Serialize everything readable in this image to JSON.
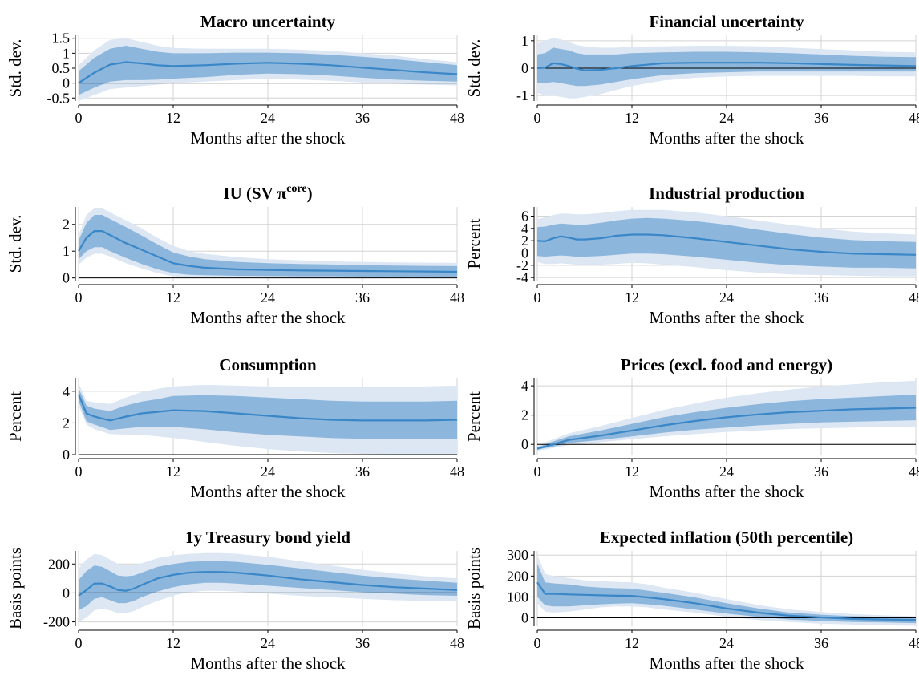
{
  "figure": {
    "xlabel": "Months after the shock",
    "x_ticks": [
      0,
      12,
      24,
      36,
      48
    ],
    "xlim": [
      0,
      48
    ]
  },
  "chart_data": [
    {
      "type": "line",
      "title": "Macro uncertainty",
      "ylabel": "Std. dev.",
      "ylim": [
        -0.6,
        1.6
      ],
      "y_ticks": [
        1.5,
        1,
        0.5,
        0,
        -0.5
      ],
      "y_tick_labels": [
        "1.5",
        "1",
        "0.5",
        "0",
        "-0.5"
      ],
      "x": [
        0,
        2,
        4,
        6,
        8,
        10,
        12,
        16,
        20,
        24,
        28,
        32,
        36,
        40,
        44,
        48
      ],
      "median": [
        0,
        0.35,
        0.62,
        0.7,
        0.66,
        0.6,
        0.57,
        0.6,
        0.65,
        0.68,
        0.65,
        0.6,
        0.52,
        0.44,
        0.36,
        0.3
      ],
      "inner_lo": [
        -0.4,
        -0.15,
        0.05,
        0.1,
        0.1,
        0.12,
        0.15,
        0.2,
        0.28,
        0.32,
        0.3,
        0.25,
        0.18,
        0.12,
        0.08,
        0.05
      ],
      "inner_hi": [
        0.4,
        0.85,
        1.15,
        1.25,
        1.15,
        1.05,
        1.0,
        1.0,
        1.02,
        1.02,
        1.0,
        0.95,
        0.88,
        0.8,
        0.7,
        0.6
      ],
      "outer_lo": [
        -0.6,
        -0.4,
        -0.2,
        -0.15,
        -0.1,
        -0.05,
        0.0,
        0.05,
        0.1,
        0.15,
        0.12,
        0.08,
        0.02,
        -0.02,
        -0.05,
        -0.08
      ],
      "outer_hi": [
        0.6,
        1.1,
        1.45,
        1.5,
        1.38,
        1.25,
        1.18,
        1.15,
        1.15,
        1.15,
        1.12,
        1.08,
        1.0,
        0.92,
        0.8,
        0.7
      ]
    },
    {
      "type": "line",
      "title": "Financial uncertainty",
      "ylabel": "Std. dev.",
      "ylim": [
        -1.2,
        1.2
      ],
      "y_ticks": [
        1,
        0,
        -1
      ],
      "y_tick_labels": [
        "1",
        "0",
        "-1"
      ],
      "x": [
        0,
        1,
        2,
        3,
        4,
        5,
        6,
        8,
        10,
        12,
        16,
        20,
        24,
        28,
        32,
        36,
        40,
        44,
        48
      ],
      "median": [
        0,
        0.02,
        0.18,
        0.15,
        0.08,
        -0.02,
        -0.08,
        -0.06,
        0.0,
        0.08,
        0.18,
        0.2,
        0.2,
        0.2,
        0.18,
        0.15,
        0.12,
        0.1,
        0.08
      ],
      "inner_lo": [
        -0.55,
        -0.55,
        -0.5,
        -0.55,
        -0.6,
        -0.65,
        -0.65,
        -0.6,
        -0.5,
        -0.4,
        -0.25,
        -0.18,
        -0.15,
        -0.12,
        -0.12,
        -0.12,
        -0.12,
        -0.12,
        -0.12
      ],
      "inner_hi": [
        0.5,
        0.55,
        0.75,
        0.7,
        0.65,
        0.55,
        0.5,
        0.5,
        0.5,
        0.55,
        0.58,
        0.6,
        0.6,
        0.58,
        0.55,
        0.5,
        0.45,
        0.42,
        0.4
      ],
      "outer_lo": [
        -0.9,
        -1.0,
        -1.0,
        -1.05,
        -1.1,
        -1.1,
        -1.05,
        -0.95,
        -0.8,
        -0.65,
        -0.45,
        -0.35,
        -0.3,
        -0.28,
        -0.28,
        -0.28,
        -0.28,
        -0.3,
        -0.3
      ],
      "outer_hi": [
        0.9,
        1.0,
        1.1,
        1.05,
        0.95,
        0.85,
        0.8,
        0.75,
        0.75,
        0.78,
        0.8,
        0.82,
        0.82,
        0.8,
        0.75,
        0.7,
        0.65,
        0.6,
        0.58
      ]
    },
    {
      "type": "line",
      "title": "IU (SV π",
      "title_sup": "core",
      "title_close": ")",
      "ylabel": "Std. dev.",
      "ylim": [
        -0.1,
        2.65
      ],
      "y_ticks": [
        2,
        1,
        0
      ],
      "y_tick_labels": [
        "2",
        "1",
        "0"
      ],
      "x": [
        0,
        1,
        2,
        3,
        4,
        6,
        8,
        10,
        12,
        14,
        16,
        20,
        24,
        28,
        32,
        36,
        40,
        44,
        48
      ],
      "median": [
        1.0,
        1.5,
        1.75,
        1.75,
        1.6,
        1.3,
        1.05,
        0.8,
        0.55,
        0.45,
        0.38,
        0.32,
        0.3,
        0.28,
        0.27,
        0.26,
        0.25,
        0.24,
        0.23
      ],
      "inner_lo": [
        0.7,
        1.0,
        1.15,
        1.15,
        1.0,
        0.75,
        0.52,
        0.32,
        0.18,
        0.12,
        0.1,
        0.08,
        0.07,
        0.06,
        0.06,
        0.05,
        0.05,
        0.05,
        0.05
      ],
      "inner_hi": [
        1.4,
        2.05,
        2.35,
        2.35,
        2.2,
        1.9,
        1.58,
        1.25,
        0.95,
        0.8,
        0.7,
        0.6,
        0.55,
        0.52,
        0.5,
        0.48,
        0.46,
        0.45,
        0.44
      ],
      "outer_lo": [
        0.5,
        0.75,
        0.9,
        0.9,
        0.8,
        0.55,
        0.35,
        0.18,
        0.06,
        0.02,
        0.0,
        -0.02,
        -0.02,
        -0.02,
        -0.02,
        -0.02,
        -0.02,
        -0.02,
        -0.02
      ],
      "outer_hi": [
        1.6,
        2.35,
        2.6,
        2.6,
        2.45,
        2.15,
        1.85,
        1.5,
        1.2,
        1.0,
        0.9,
        0.78,
        0.7,
        0.66,
        0.62,
        0.6,
        0.58,
        0.57,
        0.56
      ]
    },
    {
      "type": "line",
      "title": "Industrial production",
      "ylabel": "Percent",
      "ylim": [
        -4.5,
        7.5
      ],
      "y_ticks": [
        6,
        4,
        2,
        0,
        -2,
        -4
      ],
      "y_tick_labels": [
        "6",
        "4",
        "2",
        "0",
        "-2",
        "-4"
      ],
      "x": [
        0,
        1,
        2,
        3,
        4,
        5,
        6,
        8,
        10,
        12,
        14,
        16,
        20,
        24,
        28,
        32,
        36,
        40,
        44,
        48
      ],
      "median": [
        2.0,
        1.9,
        2.4,
        2.7,
        2.5,
        2.2,
        2.2,
        2.4,
        2.8,
        3.0,
        3.0,
        2.9,
        2.4,
        1.8,
        1.2,
        0.6,
        0.2,
        -0.1,
        -0.2,
        -0.3
      ],
      "inner_lo": [
        -0.5,
        -0.6,
        -0.5,
        -0.4,
        -0.5,
        -0.6,
        -0.6,
        -0.5,
        -0.3,
        -0.1,
        -0.1,
        -0.2,
        -0.6,
        -1.1,
        -1.6,
        -2.0,
        -2.2,
        -2.4,
        -2.4,
        -2.5
      ],
      "inner_hi": [
        4.2,
        4.3,
        4.6,
        4.8,
        4.7,
        4.6,
        4.6,
        4.9,
        5.3,
        5.6,
        5.7,
        5.6,
        5.2,
        4.6,
        3.8,
        3.1,
        2.5,
        2.1,
        1.9,
        1.8
      ],
      "outer_lo": [
        -1.5,
        -1.8,
        -1.8,
        -1.7,
        -1.8,
        -1.9,
        -2.0,
        -1.9,
        -1.8,
        -1.6,
        -1.7,
        -1.9,
        -2.3,
        -2.8,
        -3.2,
        -3.5,
        -3.6,
        -3.7,
        -3.8,
        -3.8
      ],
      "outer_hi": [
        5.5,
        5.8,
        6.2,
        6.4,
        6.4,
        6.3,
        6.3,
        6.5,
        6.8,
        7.0,
        7.0,
        7.0,
        6.6,
        6.0,
        5.3,
        4.6,
        4.0,
        3.5,
        3.2,
        3.0
      ]
    },
    {
      "type": "line",
      "title": "Consumption",
      "ylabel": "Percent",
      "ylim": [
        0,
        4.8
      ],
      "y_ticks": [
        4,
        2,
        0
      ],
      "y_tick_labels": [
        "4",
        "2",
        "0"
      ],
      "x": [
        0,
        1,
        2,
        4,
        6,
        8,
        10,
        12,
        16,
        20,
        24,
        28,
        32,
        36,
        40,
        44,
        48
      ],
      "median": [
        3.8,
        2.6,
        2.4,
        2.15,
        2.4,
        2.6,
        2.7,
        2.8,
        2.75,
        2.6,
        2.45,
        2.3,
        2.2,
        2.15,
        2.15,
        2.15,
        2.2
      ],
      "inner_lo": [
        3.4,
        2.1,
        1.9,
        1.55,
        1.65,
        1.75,
        1.75,
        1.75,
        1.6,
        1.4,
        1.25,
        1.15,
        1.05,
        1.0,
        1.0,
        1.0,
        1.0
      ],
      "inner_hi": [
        4.2,
        3.1,
        2.9,
        2.75,
        3.1,
        3.35,
        3.5,
        3.7,
        3.75,
        3.7,
        3.6,
        3.5,
        3.4,
        3.35,
        3.35,
        3.35,
        3.4
      ],
      "outer_lo": [
        3.1,
        1.9,
        1.6,
        1.3,
        1.25,
        1.25,
        1.15,
        1.05,
        0.8,
        0.55,
        0.35,
        0.2,
        0.1,
        0.05,
        0.02,
        0.0,
        0.0
      ],
      "outer_hi": [
        4.5,
        3.4,
        3.3,
        3.2,
        3.6,
        3.95,
        4.15,
        4.3,
        4.4,
        4.35,
        4.3,
        4.25,
        4.25,
        4.25,
        4.25,
        4.3,
        4.35
      ]
    },
    {
      "type": "line",
      "title": "Prices (excl. food and energy)",
      "ylabel": "Percent",
      "ylim": [
        -0.7,
        4.5
      ],
      "y_ticks": [
        4,
        2,
        0
      ],
      "y_tick_labels": [
        "4",
        "2",
        "0"
      ],
      "x": [
        0,
        2,
        4,
        6,
        8,
        12,
        16,
        20,
        24,
        28,
        32,
        36,
        40,
        44,
        48
      ],
      "median": [
        -0.3,
        0.0,
        0.3,
        0.45,
        0.6,
        0.95,
        1.3,
        1.6,
        1.85,
        2.05,
        2.2,
        2.3,
        2.4,
        2.45,
        2.5
      ],
      "inner_lo": [
        -0.35,
        -0.15,
        0.1,
        0.2,
        0.3,
        0.55,
        0.8,
        1.0,
        1.15,
        1.3,
        1.4,
        1.5,
        1.55,
        1.6,
        1.65
      ],
      "inner_hi": [
        -0.2,
        0.2,
        0.55,
        0.75,
        0.95,
        1.4,
        1.85,
        2.2,
        2.5,
        2.75,
        2.95,
        3.1,
        3.2,
        3.3,
        3.4
      ],
      "outer_lo": [
        -0.45,
        -0.25,
        -0.05,
        0.05,
        0.15,
        0.35,
        0.55,
        0.7,
        0.85,
        0.95,
        1.05,
        1.1,
        1.15,
        1.2,
        1.2
      ],
      "outer_hi": [
        -0.1,
        0.35,
        0.75,
        1.0,
        1.25,
        1.8,
        2.35,
        2.8,
        3.2,
        3.5,
        3.75,
        3.95,
        4.1,
        4.25,
        4.35
      ]
    },
    {
      "type": "line",
      "title": "1y Treasury bond yield",
      "ylabel": "Basis points",
      "ylim": [
        -230,
        290
      ],
      "y_ticks": [
        200,
        0,
        -200
      ],
      "y_tick_labels": [
        "200",
        "0",
        "-200"
      ],
      "x": [
        0,
        1,
        2,
        3,
        4,
        5,
        6,
        7,
        8,
        10,
        12,
        14,
        16,
        18,
        20,
        24,
        28,
        32,
        36,
        40,
        44,
        48
      ],
      "median": [
        -20,
        20,
        65,
        65,
        45,
        20,
        15,
        30,
        55,
        100,
        125,
        140,
        145,
        145,
        140,
        120,
        95,
        75,
        55,
        40,
        30,
        20
      ],
      "inner_lo": [
        -120,
        -90,
        -40,
        -30,
        -50,
        -70,
        -70,
        -55,
        -30,
        10,
        40,
        60,
        70,
        70,
        65,
        50,
        35,
        20,
        5,
        -5,
        -15,
        -20
      ],
      "inner_hi": [
        90,
        150,
        190,
        180,
        150,
        120,
        115,
        120,
        140,
        180,
        200,
        215,
        220,
        220,
        215,
        195,
        170,
        145,
        120,
        100,
        85,
        70
      ],
      "outer_lo": [
        -200,
        -170,
        -120,
        -110,
        -120,
        -140,
        -140,
        -125,
        -100,
        -55,
        -20,
        5,
        15,
        15,
        10,
        -5,
        -20,
        -30,
        -40,
        -50,
        -55,
        -60
      ],
      "outer_hi": [
        170,
        230,
        270,
        260,
        230,
        200,
        190,
        195,
        205,
        240,
        260,
        270,
        275,
        275,
        270,
        250,
        220,
        190,
        160,
        135,
        115,
        100
      ]
    },
    {
      "type": "line",
      "title": "Expected inflation (50th percentile)",
      "ylabel": "Basis points",
      "ylim": [
        -40,
        320
      ],
      "y_ticks": [
        300,
        200,
        100,
        0
      ],
      "y_tick_labels": [
        "300",
        "200",
        "100",
        "0"
      ],
      "x": [
        0,
        1,
        2,
        4,
        6,
        8,
        10,
        12,
        14,
        16,
        20,
        24,
        28,
        32,
        36,
        40,
        44,
        48
      ],
      "median": [
        170,
        115,
        115,
        112,
        110,
        108,
        106,
        105,
        98,
        90,
        70,
        45,
        25,
        10,
        2,
        -5,
        -8,
        -10
      ],
      "inner_lo": [
        100,
        60,
        55,
        55,
        60,
        65,
        68,
        70,
        65,
        58,
        40,
        20,
        5,
        -8,
        -15,
        -20,
        -22,
        -25
      ],
      "inner_hi": [
        260,
        170,
        165,
        160,
        150,
        145,
        142,
        140,
        130,
        120,
        98,
        70,
        45,
        25,
        15,
        8,
        5,
        3
      ],
      "outer_lo": [
        70,
        30,
        25,
        30,
        40,
        50,
        55,
        55,
        50,
        40,
        25,
        5,
        -10,
        -20,
        -28,
        -32,
        -35,
        -38
      ],
      "outer_hi": [
        300,
        210,
        200,
        190,
        180,
        175,
        172,
        170,
        160,
        145,
        120,
        90,
        62,
        40,
        28,
        18,
        12,
        8
      ]
    }
  ]
}
